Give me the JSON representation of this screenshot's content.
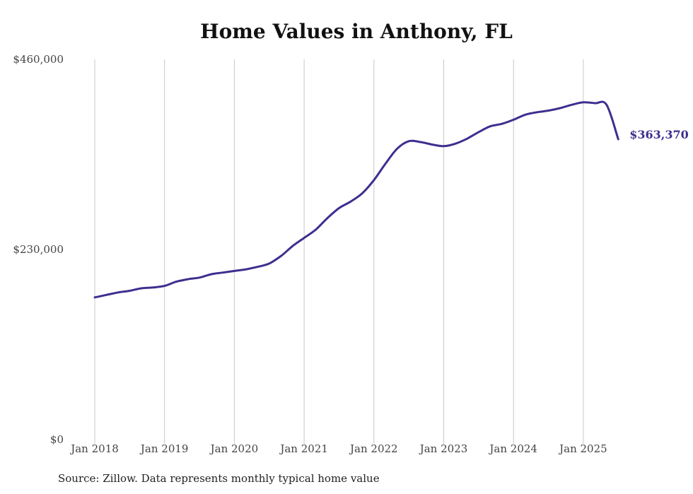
{
  "chart_data": {
    "type": "line",
    "title": "Home Values in Anthony, FL",
    "source": "Source: Zillow. Data represents monthly typical home value",
    "ylim": [
      0,
      460000
    ],
    "y_ticks": [
      "$0",
      "$230,000",
      "$460,000"
    ],
    "y_tick_values": [
      0,
      230000,
      460000
    ],
    "x_ticks": [
      "Jan 2018",
      "Jan 2019",
      "Jan 2020",
      "Jan 2021",
      "Jan 2022",
      "Jan 2023",
      "Jan 2024",
      "Jan 2025"
    ],
    "x_tick_values": [
      "2018-01",
      "2019-01",
      "2020-01",
      "2021-01",
      "2022-01",
      "2023-01",
      "2024-01",
      "2025-01"
    ],
    "grid": "vertical",
    "line_color": "#3d2f8f",
    "end_label": "$363,370",
    "series": [
      {
        "x": [
          "2018-01",
          "2018-03",
          "2018-05",
          "2018-07",
          "2018-09",
          "2018-11",
          "2019-01",
          "2019-03",
          "2019-05",
          "2019-07",
          "2019-09",
          "2019-11",
          "2020-01",
          "2020-03",
          "2020-05",
          "2020-07",
          "2020-09",
          "2020-11",
          "2021-01",
          "2021-03",
          "2021-05",
          "2021-07",
          "2021-09",
          "2021-11",
          "2022-01",
          "2022-03",
          "2022-05",
          "2022-07",
          "2022-09",
          "2022-11",
          "2023-01",
          "2023-03",
          "2023-05",
          "2023-07",
          "2023-09",
          "2023-11",
          "2024-01",
          "2024-03",
          "2024-05",
          "2024-07",
          "2024-09",
          "2024-11",
          "2025-01",
          "2025-03",
          "2025-05",
          "2025-07"
        ],
        "values": [
          172000,
          175000,
          178000,
          180000,
          183000,
          184000,
          186000,
          191000,
          194000,
          196000,
          200000,
          202000,
          204000,
          206000,
          209000,
          213000,
          222000,
          234000,
          244000,
          254000,
          268000,
          280000,
          288000,
          298000,
          314000,
          334000,
          352000,
          361000,
          360000,
          357000,
          355000,
          358000,
          364000,
          372000,
          379000,
          382000,
          387000,
          393000,
          396000,
          398000,
          401000,
          405000,
          408000,
          407000,
          405000,
          363370
        ]
      }
    ]
  }
}
